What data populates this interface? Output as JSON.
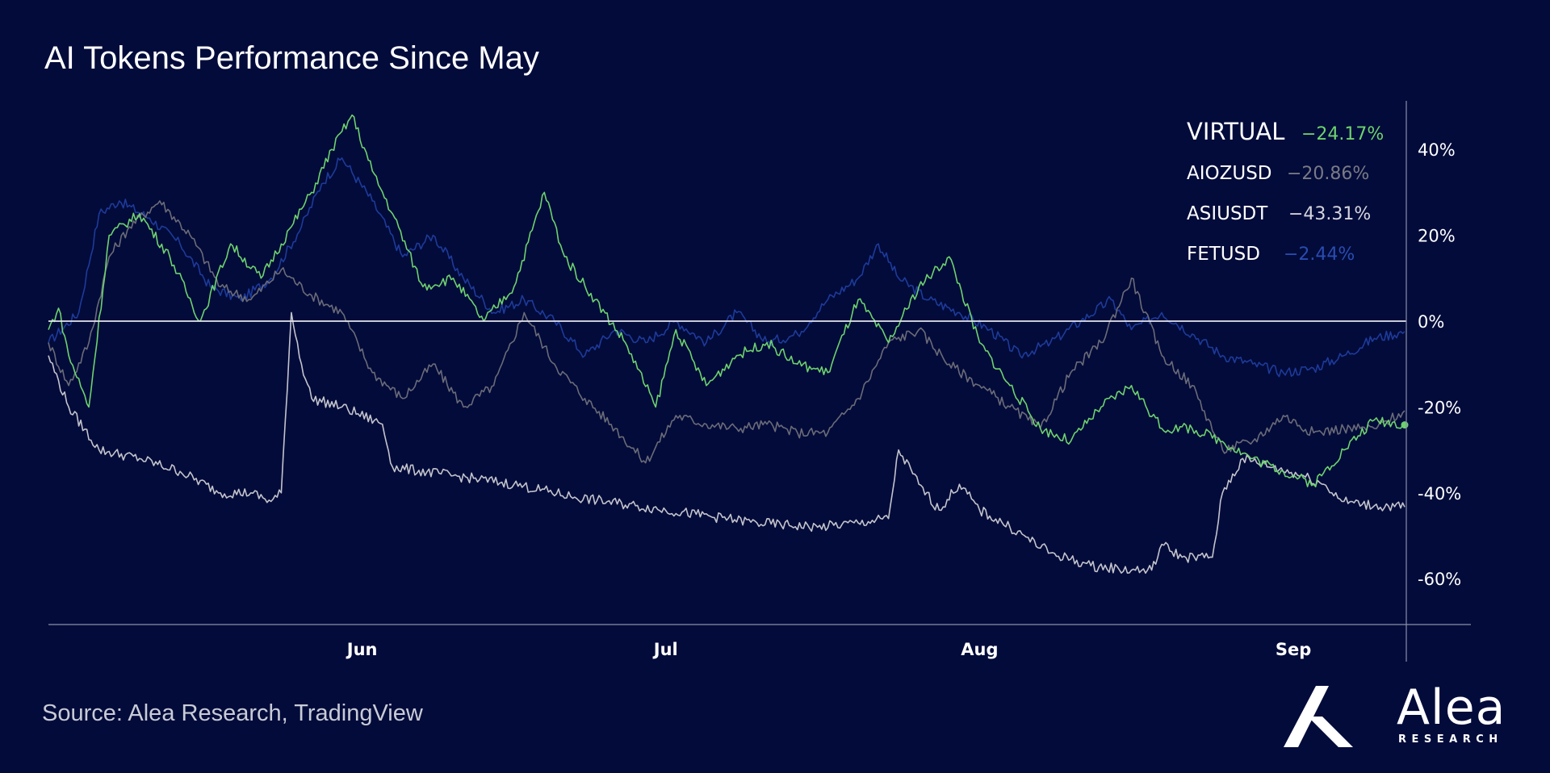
{
  "title": "AI Tokens Performance Since May",
  "source": "Source: Alea Research, TradingView",
  "logo": {
    "name": "Alea",
    "sub": "RESEARCH"
  },
  "chart_data": {
    "type": "line",
    "title": "AI Tokens Performance Since May",
    "x_range": [
      "2024-05-01",
      "2024-09-12"
    ],
    "ylim": [
      -70,
      50
    ],
    "y_ticks": [
      {
        "value": 40,
        "label": "40%"
      },
      {
        "value": 20,
        "label": "20%"
      },
      {
        "value": 0,
        "label": "0%"
      },
      {
        "value": -20,
        "label": "-20%"
      },
      {
        "value": -40,
        "label": "-40%"
      },
      {
        "value": -60,
        "label": "-60%"
      }
    ],
    "x_ticks": [
      {
        "date": "2024-06-01",
        "label": "Jun"
      },
      {
        "date": "2024-07-01",
        "label": "Jul"
      },
      {
        "date": "2024-08-01",
        "label": "Aug"
      },
      {
        "date": "2024-09-01",
        "label": "Sep"
      }
    ],
    "legend_position": "top-right",
    "grid": false,
    "series": [
      {
        "name": "FETUSD",
        "last_value_label": "−2.44%",
        "color": "#1e3a9a",
        "points": [
          [
            "2024-05-01",
            -5
          ],
          [
            "2024-05-04",
            2
          ],
          [
            "2024-05-06",
            25
          ],
          [
            "2024-05-08",
            28
          ],
          [
            "2024-05-11",
            24
          ],
          [
            "2024-05-14",
            18
          ],
          [
            "2024-05-17",
            8
          ],
          [
            "2024-05-20",
            5
          ],
          [
            "2024-05-23",
            10
          ],
          [
            "2024-05-26",
            22
          ],
          [
            "2024-05-28",
            32
          ],
          [
            "2024-05-30",
            38
          ],
          [
            "2024-06-02",
            28
          ],
          [
            "2024-06-05",
            15
          ],
          [
            "2024-06-08",
            20
          ],
          [
            "2024-06-11",
            10
          ],
          [
            "2024-06-14",
            2
          ],
          [
            "2024-06-17",
            5
          ],
          [
            "2024-06-20",
            0
          ],
          [
            "2024-06-23",
            -8
          ],
          [
            "2024-06-26",
            -2
          ],
          [
            "2024-06-29",
            -5
          ],
          [
            "2024-07-02",
            0
          ],
          [
            "2024-07-05",
            -5
          ],
          [
            "2024-07-08",
            2
          ],
          [
            "2024-07-11",
            -5
          ],
          [
            "2024-07-14",
            -3
          ],
          [
            "2024-07-17",
            5
          ],
          [
            "2024-07-20",
            10
          ],
          [
            "2024-07-22",
            18
          ],
          [
            "2024-07-24",
            10
          ],
          [
            "2024-07-27",
            5
          ],
          [
            "2024-07-30",
            2
          ],
          [
            "2024-08-02",
            -2
          ],
          [
            "2024-08-05",
            -8
          ],
          [
            "2024-08-08",
            -5
          ],
          [
            "2024-08-11",
            0
          ],
          [
            "2024-08-14",
            5
          ],
          [
            "2024-08-16",
            -2
          ],
          [
            "2024-08-19",
            2
          ],
          [
            "2024-08-22",
            -3
          ],
          [
            "2024-08-25",
            -8
          ],
          [
            "2024-08-28",
            -10
          ],
          [
            "2024-08-31",
            -12
          ],
          [
            "2024-09-03",
            -11
          ],
          [
            "2024-09-06",
            -8
          ],
          [
            "2024-09-09",
            -4
          ],
          [
            "2024-09-12",
            -2.44
          ]
        ]
      },
      {
        "name": "AIOZUSD",
        "last_value_label": "−20.86%",
        "color": "#6b6b78",
        "points": [
          [
            "2024-05-01",
            -5
          ],
          [
            "2024-05-03",
            -15
          ],
          [
            "2024-05-05",
            -5
          ],
          [
            "2024-05-07",
            15
          ],
          [
            "2024-05-09",
            22
          ],
          [
            "2024-05-12",
            28
          ],
          [
            "2024-05-15",
            20
          ],
          [
            "2024-05-18",
            8
          ],
          [
            "2024-05-21",
            5
          ],
          [
            "2024-05-24",
            12
          ],
          [
            "2024-05-27",
            6
          ],
          [
            "2024-05-30",
            2
          ],
          [
            "2024-06-02",
            -12
          ],
          [
            "2024-06-05",
            -18
          ],
          [
            "2024-06-08",
            -10
          ],
          [
            "2024-06-11",
            -20
          ],
          [
            "2024-06-14",
            -15
          ],
          [
            "2024-06-17",
            2
          ],
          [
            "2024-06-20",
            -10
          ],
          [
            "2024-06-23",
            -18
          ],
          [
            "2024-06-26",
            -25
          ],
          [
            "2024-06-29",
            -33
          ],
          [
            "2024-07-02",
            -22
          ],
          [
            "2024-07-05",
            -24
          ],
          [
            "2024-07-08",
            -25
          ],
          [
            "2024-07-11",
            -24
          ],
          [
            "2024-07-14",
            -26
          ],
          [
            "2024-07-17",
            -26
          ],
          [
            "2024-07-20",
            -18
          ],
          [
            "2024-07-23",
            -5
          ],
          [
            "2024-07-26",
            -2
          ],
          [
            "2024-07-29",
            -10
          ],
          [
            "2024-08-01",
            -15
          ],
          [
            "2024-08-04",
            -20
          ],
          [
            "2024-08-07",
            -25
          ],
          [
            "2024-08-10",
            -12
          ],
          [
            "2024-08-13",
            -5
          ],
          [
            "2024-08-16",
            10
          ],
          [
            "2024-08-19",
            -8
          ],
          [
            "2024-08-22",
            -15
          ],
          [
            "2024-08-25",
            -30
          ],
          [
            "2024-08-28",
            -28
          ],
          [
            "2024-08-31",
            -22
          ],
          [
            "2024-09-03",
            -26
          ],
          [
            "2024-09-06",
            -25
          ],
          [
            "2024-09-09",
            -25
          ],
          [
            "2024-09-12",
            -20.86
          ]
        ]
      },
      {
        "name": "ASIUSDT",
        "last_value_label": "−43.31%",
        "color": "#c4c4cc",
        "points": [
          [
            "2024-05-01",
            -8
          ],
          [
            "2024-05-03",
            -20
          ],
          [
            "2024-05-06",
            -30
          ],
          [
            "2024-05-10",
            -32
          ],
          [
            "2024-05-14",
            -35
          ],
          [
            "2024-05-18",
            -40
          ],
          [
            "2024-05-21",
            -40
          ],
          [
            "2024-05-23",
            -42
          ],
          [
            "2024-05-24",
            -40
          ],
          [
            "2024-05-25",
            2
          ],
          [
            "2024-05-26",
            -10
          ],
          [
            "2024-05-27",
            -18
          ],
          [
            "2024-05-30",
            -20
          ],
          [
            "2024-06-03",
            -24
          ],
          [
            "2024-06-04",
            -34
          ],
          [
            "2024-06-10",
            -36
          ],
          [
            "2024-06-16",
            -38
          ],
          [
            "2024-06-22",
            -41
          ],
          [
            "2024-06-28",
            -43
          ],
          [
            "2024-07-04",
            -45
          ],
          [
            "2024-07-10",
            -47
          ],
          [
            "2024-07-16",
            -48
          ],
          [
            "2024-07-20",
            -47
          ],
          [
            "2024-07-23",
            -46
          ],
          [
            "2024-07-24",
            -30
          ],
          [
            "2024-07-26",
            -38
          ],
          [
            "2024-07-28",
            -44
          ],
          [
            "2024-07-30",
            -38
          ],
          [
            "2024-08-01",
            -44
          ],
          [
            "2024-08-04",
            -48
          ],
          [
            "2024-08-08",
            -54
          ],
          [
            "2024-08-12",
            -57
          ],
          [
            "2024-08-16",
            -58
          ],
          [
            "2024-08-18",
            -58
          ],
          [
            "2024-08-19",
            -52
          ],
          [
            "2024-08-21",
            -55
          ],
          [
            "2024-08-24",
            -55
          ],
          [
            "2024-08-25",
            -40
          ],
          [
            "2024-08-27",
            -32
          ],
          [
            "2024-08-30",
            -34
          ],
          [
            "2024-09-02",
            -36
          ],
          [
            "2024-09-04",
            -38
          ],
          [
            "2024-09-06",
            -42
          ],
          [
            "2024-09-09",
            -43
          ],
          [
            "2024-09-12",
            -43.31
          ]
        ]
      },
      {
        "name": "VIRTUAL",
        "last_value_label": "−24.17%",
        "color": "#6ed26e",
        "points": [
          [
            "2024-05-01",
            -2
          ],
          [
            "2024-05-02",
            3
          ],
          [
            "2024-05-03",
            -8
          ],
          [
            "2024-05-05",
            -20
          ],
          [
            "2024-05-07",
            20
          ],
          [
            "2024-05-10",
            25
          ],
          [
            "2024-05-13",
            15
          ],
          [
            "2024-05-16",
            0
          ],
          [
            "2024-05-19",
            18
          ],
          [
            "2024-05-22",
            10
          ],
          [
            "2024-05-25",
            22
          ],
          [
            "2024-05-27",
            30
          ],
          [
            "2024-05-29",
            40
          ],
          [
            "2024-05-31",
            48
          ],
          [
            "2024-06-02",
            35
          ],
          [
            "2024-06-04",
            25
          ],
          [
            "2024-06-07",
            8
          ],
          [
            "2024-06-10",
            10
          ],
          [
            "2024-06-13",
            0
          ],
          [
            "2024-06-16",
            8
          ],
          [
            "2024-06-19",
            30
          ],
          [
            "2024-06-21",
            15
          ],
          [
            "2024-06-24",
            5
          ],
          [
            "2024-06-27",
            -5
          ],
          [
            "2024-06-30",
            -20
          ],
          [
            "2024-07-02",
            -2
          ],
          [
            "2024-07-05",
            -15
          ],
          [
            "2024-07-08",
            -8
          ],
          [
            "2024-07-11",
            -5
          ],
          [
            "2024-07-14",
            -10
          ],
          [
            "2024-07-17",
            -12
          ],
          [
            "2024-07-20",
            5
          ],
          [
            "2024-07-23",
            -5
          ],
          [
            "2024-07-26",
            8
          ],
          [
            "2024-07-29",
            15
          ],
          [
            "2024-08-01",
            -5
          ],
          [
            "2024-08-04",
            -15
          ],
          [
            "2024-08-07",
            -25
          ],
          [
            "2024-08-10",
            -28
          ],
          [
            "2024-08-13",
            -20
          ],
          [
            "2024-08-16",
            -15
          ],
          [
            "2024-08-19",
            -25
          ],
          [
            "2024-08-22",
            -25
          ],
          [
            "2024-08-25",
            -28
          ],
          [
            "2024-08-28",
            -32
          ],
          [
            "2024-08-31",
            -35
          ],
          [
            "2024-09-03",
            -38
          ],
          [
            "2024-09-06",
            -30
          ],
          [
            "2024-09-09",
            -23
          ],
          [
            "2024-09-12",
            -24.17
          ]
        ]
      }
    ]
  }
}
